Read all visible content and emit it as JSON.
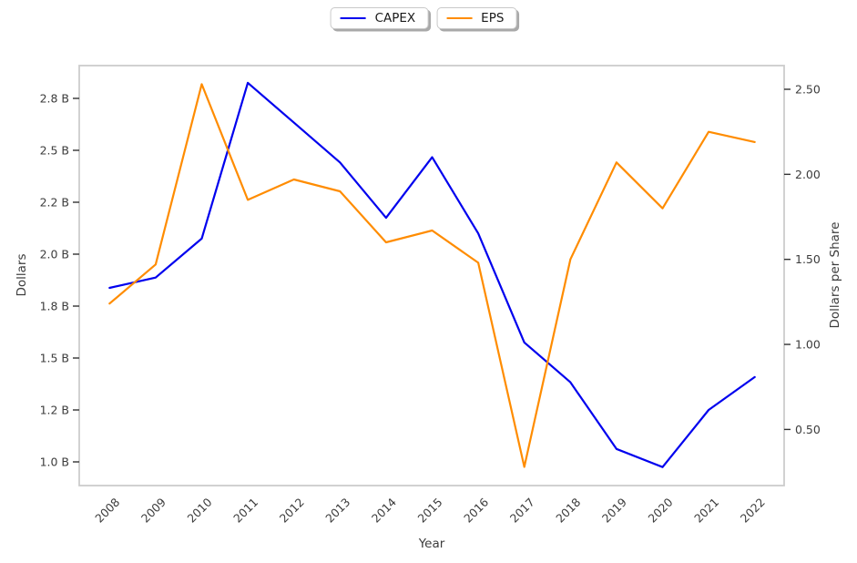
{
  "chart_data": {
    "type": "line",
    "xlabel": "Year",
    "categories": [
      "2008",
      "2009",
      "2010",
      "2011",
      "2012",
      "2013",
      "2014",
      "2015",
      "2016",
      "2017",
      "2018",
      "2019",
      "2020",
      "2021",
      "2022"
    ],
    "series": [
      {
        "name": "CAPEX",
        "axis": "left",
        "color": "#0000ee",
        "values": [
          1.87,
          1.91,
          2.06,
          2.89,
          2.66,
          2.43,
          2.14,
          2.46,
          2.08,
          1.59,
          1.36,
          1.05,
          0.98,
          1.2,
          1.39
        ]
      },
      {
        "name": "EPS",
        "axis": "right",
        "color": "#ff8c00",
        "values": [
          1.24,
          1.47,
          2.53,
          1.85,
          1.97,
          1.9,
          1.6,
          1.67,
          1.48,
          0.28,
          1.5,
          2.07,
          1.8,
          2.25,
          2.19
        ]
      }
    ],
    "left_axis": {
      "label": "Dollars",
      "tick_labels": [
        "2.8 B",
        "2.5 B",
        "2.2 B",
        "2.0 B",
        "1.8 B",
        "1.5 B",
        "1.2 B",
        "1.0 B"
      ],
      "tick_values": [
        2.8,
        2.5,
        2.2,
        2.0,
        1.8,
        1.5,
        1.2,
        1.0
      ]
    },
    "right_axis": {
      "label": "Dollars per Share",
      "tick_labels": [
        "2.50",
        "2.00",
        "1.50",
        "1.00",
        "0.50"
      ],
      "tick_values": [
        2.5,
        2.0,
        1.5,
        1.0,
        0.5
      ]
    },
    "grid": false,
    "legend_position": "top-center",
    "frame_color": "#cccccc",
    "tick_color": "#333333",
    "text_color": "#3c3c3c"
  }
}
